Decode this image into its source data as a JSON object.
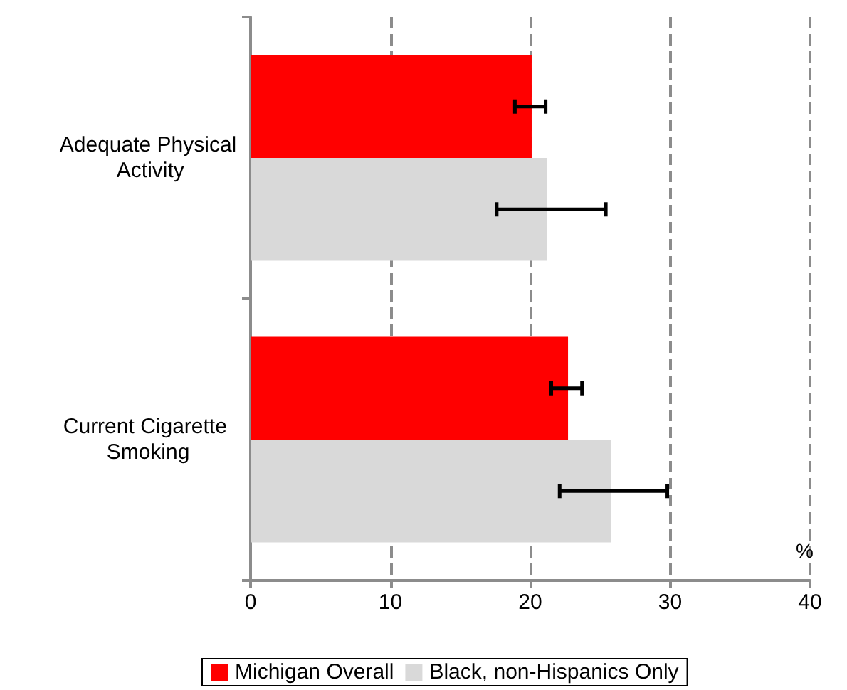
{
  "chart_data": {
    "type": "bar",
    "orientation": "horizontal",
    "xlabel": "%",
    "categories": [
      "Adequate Physical Activity",
      "Current Cigarette Smoking"
    ],
    "series": [
      {
        "name": "Michigan Overall",
        "color": "#ff0000",
        "values": [
          20.1,
          22.7
        ],
        "errors": [
          [
            18.9,
            21.1
          ],
          [
            21.5,
            23.7
          ]
        ]
      },
      {
        "name": "Black, non-Hispanics Only",
        "color": "#d9d9d9",
        "values": [
          21.2,
          25.8
        ],
        "errors": [
          [
            17.6,
            25.4
          ],
          [
            22.1,
            29.8
          ]
        ]
      }
    ],
    "xlim": [
      0,
      40
    ],
    "xticks": [
      0,
      10,
      20,
      30,
      40
    ],
    "grid": "x",
    "legend": "bottom"
  }
}
